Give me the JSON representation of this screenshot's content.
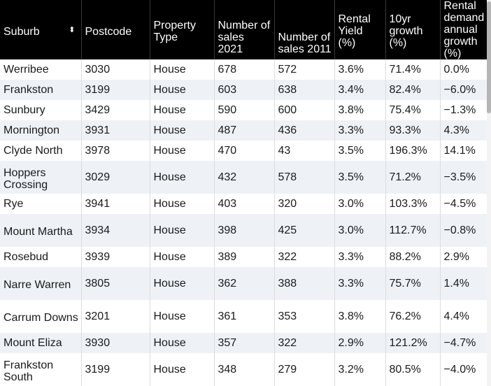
{
  "columns": [
    "Suburb",
    "Postcode",
    "Property Type",
    "Number of sales 2021",
    "Number of sales 2011",
    "Rental Yield (%)",
    "10yr growth (%)",
    "Rental demand annual growth (%)"
  ],
  "sort_icon": "sort-up-down-icon",
  "rows": [
    [
      "Werribee",
      "3030",
      "House",
      "678",
      "572",
      "3.6%",
      "71.4%",
      "0.0%"
    ],
    [
      "Frankston",
      "3199",
      "House",
      "603",
      "638",
      "3.4%",
      "82.4%",
      "−6.0%"
    ],
    [
      "Sunbury",
      "3429",
      "House",
      "590",
      "600",
      "3.8%",
      "75.4%",
      "−1.3%"
    ],
    [
      "Mornington",
      "3931",
      "House",
      "487",
      "436",
      "3.3%",
      "93.3%",
      "4.3%"
    ],
    [
      "Clyde North",
      "3978",
      "House",
      "470",
      "43",
      "3.5%",
      "196.3%",
      "14.1%"
    ],
    [
      "Hoppers Crossing",
      "3029",
      "House",
      "432",
      "578",
      "3.5%",
      "71.2%",
      "−3.5%"
    ],
    [
      "Rye",
      "3941",
      "House",
      "403",
      "320",
      "3.0%",
      "103.3%",
      "−4.5%"
    ],
    [
      "Mount Martha",
      "3934",
      "House",
      "398",
      "425",
      "3.0%",
      "112.7%",
      "−0.8%"
    ],
    [
      "Rosebud",
      "3939",
      "House",
      "389",
      "322",
      "3.3%",
      "88.2%",
      "2.9%"
    ],
    [
      "Narre Warren",
      "3805",
      "House",
      "362",
      "388",
      "3.3%",
      "75.7%",
      "1.4%"
    ],
    [
      "Carrum Downs",
      "3201",
      "House",
      "361",
      "353",
      "3.8%",
      "76.2%",
      "4.4%"
    ],
    [
      "Mount Eliza",
      "3930",
      "House",
      "357",
      "322",
      "2.9%",
      "121.2%",
      "−4.7%"
    ],
    [
      "Frankston South",
      "3199",
      "House",
      "348",
      "279",
      "3.2%",
      "80.5%",
      "−4.0%"
    ]
  ],
  "colors": {
    "header_bg": "#000000",
    "header_text": "#ffffff",
    "stripe": "#eef2f7"
  }
}
